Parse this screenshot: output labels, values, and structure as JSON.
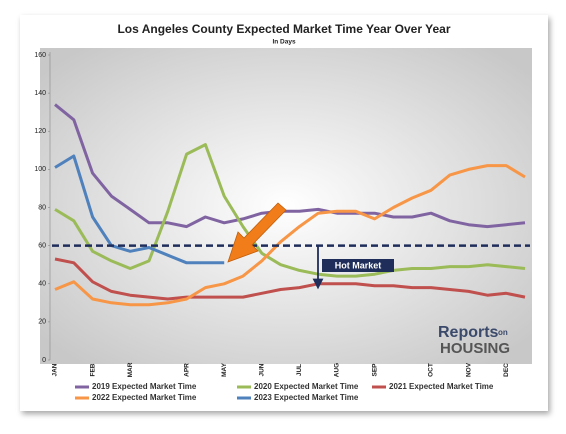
{
  "chart_data": {
    "type": "line",
    "title": "Los Angeles County Expected Market Time Year Over Year",
    "subtitle": "In Days",
    "categories": [
      "JAN",
      null,
      "FEB",
      null,
      "MAR",
      null,
      null,
      "APR",
      null,
      "MAY",
      null,
      "JUN",
      null,
      "JUL",
      null,
      "AUG",
      null,
      "SEP",
      null,
      null,
      "OCT",
      null,
      "NOV",
      null,
      "DEC",
      null
    ],
    "series": [
      {
        "name": "2019 Expected Market Time",
        "color": "#8064a2",
        "values": [
          134,
          126,
          98,
          86,
          79,
          72,
          72,
          70,
          75,
          72,
          74,
          77,
          78,
          78,
          79,
          77,
          77,
          77,
          75,
          75,
          77,
          73,
          71,
          70,
          71,
          72
        ]
      },
      {
        "name": "2020 Expected Market Time",
        "color": "#9bbb59",
        "values": [
          79,
          73,
          57,
          52,
          48,
          52,
          78,
          108,
          113,
          86,
          70,
          56,
          50,
          47,
          45,
          44,
          44,
          45,
          47,
          48,
          48,
          49,
          49,
          50,
          49,
          48
        ]
      },
      {
        "name": "2021 Expected Market Time",
        "color": "#c0504d",
        "values": [
          53,
          51,
          41,
          36,
          34,
          33,
          32,
          33,
          33,
          33,
          33,
          35,
          37,
          38,
          40,
          40,
          40,
          39,
          39,
          38,
          38,
          37,
          36,
          34,
          35,
          33
        ]
      },
      {
        "name": "2022 Expected Market Time",
        "color": "#f79646",
        "values": [
          37,
          41,
          32,
          30,
          29,
          29,
          30,
          32,
          38,
          40,
          44,
          52,
          62,
          70,
          77,
          78,
          78,
          74,
          80,
          85,
          89,
          97,
          100,
          102,
          102,
          96
        ]
      },
      {
        "name": "2023 Expected Market Time",
        "color": "#4f81bd",
        "values": [
          101,
          107,
          75,
          60,
          57,
          59,
          55,
          51,
          51,
          51,
          null,
          null,
          null,
          null,
          null,
          null,
          null,
          null,
          null,
          null,
          null,
          null,
          null,
          null,
          null,
          null
        ]
      }
    ],
    "ylim": [
      0,
      160
    ],
    "yticks": [
      0,
      20,
      40,
      60,
      80,
      100,
      120,
      140,
      160
    ],
    "reference_line": {
      "value": 60,
      "color": "#1f2d5a"
    },
    "annotation": {
      "text": "Hot Market",
      "color": "#1f2d5a"
    },
    "logo": {
      "brand": "Reports",
      "small": "on",
      "bottom": "HOUSING"
    }
  }
}
